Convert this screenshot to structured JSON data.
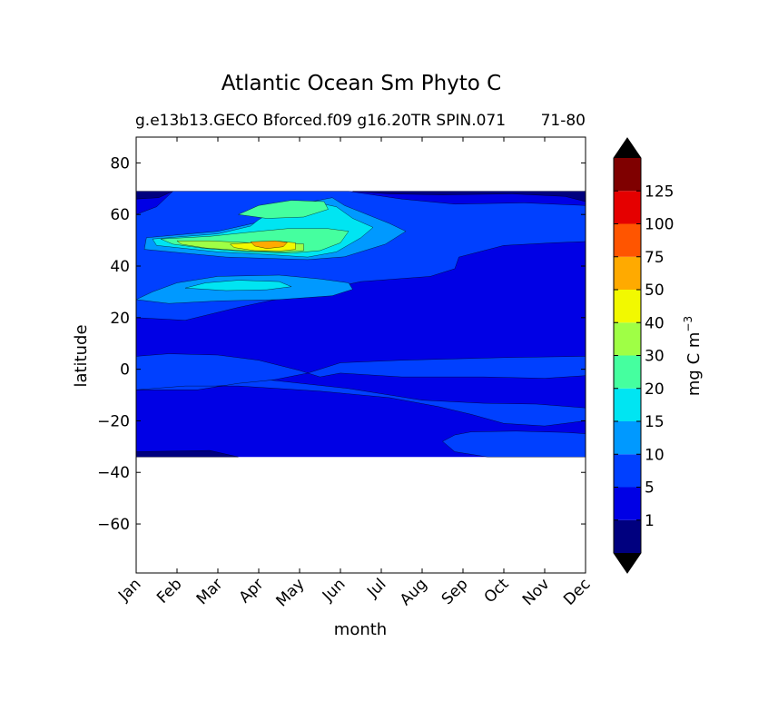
{
  "chart_data": {
    "type": "heatmap",
    "title": "Atlantic Ocean Sm Phyto C",
    "subtitle": "g.e13b13.GECO Bforced.f09 g16.20TR SPIN.071",
    "subtitle_right": "71-80",
    "xlabel": "month",
    "ylabel": "latitude",
    "x_categories": [
      "Jan",
      "Feb",
      "Mar",
      "Apr",
      "May",
      "Jun",
      "Jul",
      "Aug",
      "Sep",
      "Oct",
      "Nov",
      "Dec"
    ],
    "y_ticks": [
      80,
      60,
      40,
      20,
      0,
      -20,
      -40,
      -60
    ],
    "y_tick_labels": [
      "80",
      "60",
      "40",
      "20",
      "0",
      "−20",
      "−40",
      "−60"
    ],
    "ylim": [
      -79,
      90
    ],
    "data_lat_range": [
      -34,
      69
    ],
    "colorbar": {
      "label": "mg C m",
      "label_sup": "−3",
      "levels": [
        0,
        1,
        5,
        10,
        15,
        20,
        30,
        40,
        50,
        75,
        100,
        125,
        150
      ],
      "tick_values": [
        1,
        5,
        10,
        15,
        20,
        30,
        40,
        50,
        75,
        100,
        125
      ],
      "tick_labels": [
        "1",
        "5",
        "10",
        "15",
        "20",
        "30",
        "40",
        "50",
        "75",
        "100",
        "125"
      ],
      "colors": [
        "#00007f",
        "#0000e5",
        "#0040ff",
        "#0099ff",
        "#00e5f2",
        "#45ff9f",
        "#9fff45",
        "#f2f900",
        "#ffaa00",
        "#ff5500",
        "#e50000",
        "#7f0000"
      ],
      "extend_colors": [
        "#000000",
        "#000000"
      ]
    },
    "regions": [
      {
        "name": "background",
        "level": 1,
        "poly": [
          [
            0,
            69
          ],
          [
            11,
            69
          ],
          [
            11,
            -34
          ],
          [
            0,
            -34
          ]
        ]
      },
      {
        "name": "north-high-low",
        "level": 0,
        "poly": [
          [
            0,
            69
          ],
          [
            0.9,
            69
          ],
          [
            0.55,
            66.5
          ],
          [
            0,
            66
          ]
        ]
      },
      {
        "name": "northeast-low",
        "level": 0,
        "poly": [
          [
            5.3,
            69
          ],
          [
            11,
            69
          ],
          [
            11,
            65
          ],
          [
            10.5,
            67
          ],
          [
            9.2,
            68
          ],
          [
            7.5,
            67.6
          ],
          [
            6.2,
            68
          ]
        ]
      },
      {
        "name": "north-band-5",
        "level": 2,
        "poly": [
          [
            0.9,
            69
          ],
          [
            5.2,
            69
          ],
          [
            6.5,
            66
          ],
          [
            7.8,
            64
          ],
          [
            9.5,
            64.5
          ],
          [
            11,
            63.5
          ],
          [
            11,
            49.5
          ],
          [
            10.2,
            49
          ],
          [
            9,
            48
          ],
          [
            7.9,
            43.5
          ],
          [
            7.8,
            39
          ],
          [
            7.2,
            36
          ],
          [
            5.5,
            34
          ],
          [
            4,
            29
          ],
          [
            2.5,
            24
          ],
          [
            1.2,
            19
          ],
          [
            0,
            20
          ],
          [
            0,
            60
          ],
          [
            0.5,
            63
          ]
        ]
      },
      {
        "name": "lat48-10",
        "level": 3,
        "poly": [
          [
            0.25,
            51
          ],
          [
            2,
            53.5
          ],
          [
            3,
            57
          ],
          [
            3.8,
            63.5
          ],
          [
            4.8,
            66.5
          ],
          [
            5.1,
            63.5
          ],
          [
            6.2,
            56.5
          ],
          [
            6.6,
            53.5
          ],
          [
            6.1,
            48.5
          ],
          [
            5.1,
            43.6
          ],
          [
            4.2,
            42.5
          ],
          [
            2.2,
            43.5
          ],
          [
            0.2,
            46.5
          ]
        ]
      },
      {
        "name": "lat48-15",
        "level": 4,
        "poly": [
          [
            0.4,
            50.5
          ],
          [
            2,
            52.5
          ],
          [
            2.8,
            55.5
          ],
          [
            3,
            58
          ],
          [
            3.5,
            62.5
          ],
          [
            4.3,
            65
          ],
          [
            4.9,
            63
          ],
          [
            5.3,
            58.5
          ],
          [
            5.8,
            55
          ],
          [
            5.5,
            51
          ],
          [
            4.9,
            45.5
          ],
          [
            4.2,
            43.5
          ],
          [
            3.2,
            44.5
          ],
          [
            2,
            45.5
          ],
          [
            0.5,
            48
          ]
        ]
      },
      {
        "name": "lat48-20",
        "level": 5,
        "poly": [
          [
            0.6,
            50.5
          ],
          [
            1.8,
            51.5
          ],
          [
            3,
            53.5
          ],
          [
            3.7,
            54.5
          ],
          [
            4.7,
            54.5
          ],
          [
            5.2,
            53.5
          ],
          [
            5,
            49
          ],
          [
            4.5,
            46
          ],
          [
            3.8,
            45
          ],
          [
            2.8,
            45.5
          ],
          [
            1.7,
            46.8
          ],
          [
            0.9,
            48.5
          ]
        ]
      },
      {
        "name": "lat62-20",
        "level": 5,
        "poly": [
          [
            2.5,
            60
          ],
          [
            3,
            63.5
          ],
          [
            3.8,
            65.5
          ],
          [
            4.6,
            65
          ],
          [
            4.7,
            62
          ],
          [
            4.1,
            59
          ],
          [
            3.2,
            58.5
          ]
        ]
      },
      {
        "name": "lat48-30",
        "level": 6,
        "poly": [
          [
            1,
            49.8
          ],
          [
            1.8,
            49.8
          ],
          [
            2.8,
            49
          ],
          [
            3.6,
            48.8
          ],
          [
            4.1,
            48.6
          ],
          [
            4.1,
            46
          ],
          [
            3.6,
            45.5
          ],
          [
            2.6,
            46
          ],
          [
            1.7,
            47
          ],
          [
            1.1,
            48.5
          ]
        ]
      },
      {
        "name": "lat48-40",
        "level": 7,
        "poly": [
          [
            2.3,
            48.5
          ],
          [
            3,
            49.3
          ],
          [
            3.5,
            49.6
          ],
          [
            3.9,
            49
          ],
          [
            3.9,
            46.5
          ],
          [
            3.5,
            45.8
          ],
          [
            2.9,
            46
          ],
          [
            2.4,
            47.2
          ]
        ]
      },
      {
        "name": "lat48-50",
        "level": 8,
        "poly": [
          [
            2.8,
            49.4
          ],
          [
            3.4,
            49.8
          ],
          [
            3.7,
            49.2
          ],
          [
            3.6,
            47.5
          ],
          [
            3.2,
            46.8
          ],
          [
            2.9,
            47.8
          ]
        ]
      },
      {
        "name": "lat30-10",
        "level": 3,
        "poly": [
          [
            0,
            27
          ],
          [
            0.4,
            30
          ],
          [
            1,
            33.5
          ],
          [
            2,
            36
          ],
          [
            3.5,
            36.5
          ],
          [
            4.5,
            35
          ],
          [
            5.2,
            33.5
          ],
          [
            5.3,
            31
          ],
          [
            4.8,
            28.5
          ],
          [
            3.5,
            27
          ],
          [
            2,
            26.5
          ],
          [
            0.8,
            25.5
          ]
        ]
      },
      {
        "name": "lat32-15",
        "level": 4,
        "poly": [
          [
            1.2,
            31.5
          ],
          [
            1.7,
            33.5
          ],
          [
            2.5,
            34.5
          ],
          [
            3.5,
            34
          ],
          [
            3.8,
            32
          ],
          [
            3.2,
            30.8
          ],
          [
            2.2,
            30.5
          ]
        ]
      },
      {
        "name": "equator-5",
        "level": 2,
        "poly": [
          [
            0,
            5
          ],
          [
            0.8,
            6
          ],
          [
            2,
            5.5
          ],
          [
            3,
            3.5
          ],
          [
            4,
            -0.5
          ],
          [
            4.5,
            -3
          ],
          [
            5,
            -1.5
          ],
          [
            6.5,
            -3
          ],
          [
            8.5,
            -3
          ],
          [
            10,
            -3.5
          ],
          [
            11,
            -2.5
          ],
          [
            11,
            5
          ],
          [
            9,
            4.5
          ],
          [
            6.5,
            3.5
          ],
          [
            5,
            2.5
          ],
          [
            4.2,
            -1.5
          ],
          [
            3.4,
            -4
          ],
          [
            2.5,
            -6
          ],
          [
            1.5,
            -7
          ],
          [
            0,
            -8
          ]
        ]
      },
      {
        "name": "tropic-south-5",
        "level": 2,
        "poly": [
          [
            0,
            -8
          ],
          [
            1.2,
            -6.5
          ],
          [
            2.5,
            -6.5
          ],
          [
            3.5,
            -7.5
          ],
          [
            4.5,
            -8.5
          ],
          [
            6.2,
            -11
          ],
          [
            7.4,
            -14.5
          ],
          [
            8.2,
            -17.5
          ],
          [
            9,
            -21
          ],
          [
            10,
            -22
          ],
          [
            11,
            -20
          ],
          [
            11,
            -15
          ],
          [
            9.8,
            -13.5
          ],
          [
            8.5,
            -13.2
          ],
          [
            7,
            -12
          ],
          [
            5.2,
            -7.5
          ],
          [
            3.3,
            -4.2
          ],
          [
            2.5,
            -5.5
          ],
          [
            1.5,
            -8
          ]
        ]
      },
      {
        "name": "south-east-5",
        "level": 2,
        "poly": [
          [
            7.5,
            -28
          ],
          [
            7.8,
            -25.5
          ],
          [
            8.2,
            -24.3
          ],
          [
            9.3,
            -24
          ],
          [
            10.5,
            -24.5
          ],
          [
            11,
            -25
          ],
          [
            11,
            -34
          ],
          [
            8.6,
            -34
          ],
          [
            7.8,
            -32
          ]
        ]
      },
      {
        "name": "south-west-low",
        "level": 0,
        "poly": [
          [
            0,
            -34
          ],
          [
            2.5,
            -34
          ],
          [
            1.8,
            -31.5
          ],
          [
            0,
            -32
          ]
        ]
      }
    ]
  }
}
